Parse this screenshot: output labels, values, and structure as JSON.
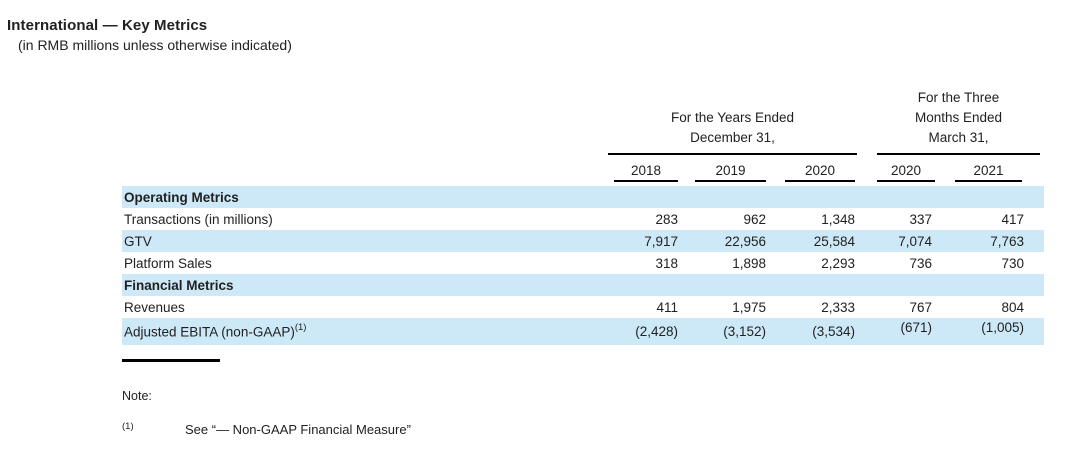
{
  "header": {
    "title": "International — Key Metrics",
    "subtitle": "(in RMB millions unless otherwise indicated)"
  },
  "table": {
    "column_groups": [
      {
        "label_lines": [
          "For the Years Ended",
          "December 31,"
        ],
        "span": 3
      },
      {
        "label_lines": [
          "For the Three",
          "Months Ended",
          "March 31,"
        ],
        "span": 2
      }
    ],
    "year_columns": [
      "2018",
      "2019",
      "2020",
      "2020",
      "2021"
    ],
    "rows": [
      {
        "label": "Operating Metrics",
        "section": true,
        "values": [
          "",
          "",
          "",
          "",
          ""
        ]
      },
      {
        "label": "Transactions (in millions)",
        "section": false,
        "values": [
          "283",
          "962",
          "1,348",
          "337",
          "417"
        ]
      },
      {
        "label": "GTV",
        "section": false,
        "values": [
          "7,917",
          "22,956",
          "25,584",
          "7,074",
          "7,763"
        ]
      },
      {
        "label": "Platform Sales",
        "section": false,
        "values": [
          "318",
          "1,898",
          "2,293",
          "736",
          "730"
        ]
      },
      {
        "label": "Financial Metrics",
        "section": true,
        "values": [
          "",
          "",
          "",
          "",
          ""
        ]
      },
      {
        "label": "Revenues",
        "section": false,
        "values": [
          "411",
          "1,975",
          "2,333",
          "767",
          "804"
        ]
      },
      {
        "label": "Adjusted EBITA (non-GAAP)",
        "label_superscript": "(1)",
        "section": false,
        "values": [
          "(2,428)",
          "(3,152)",
          "(3,534)",
          "(671)",
          "(1,005)"
        ]
      }
    ]
  },
  "notes": {
    "label": "Note:",
    "items": [
      {
        "marker": "(1)",
        "text": "See “— Non-GAAP Financial Measure”"
      }
    ]
  },
  "colors": {
    "row_highlight": "#cde9f8",
    "text_ink": "#212121",
    "rule_black": "#000000"
  }
}
